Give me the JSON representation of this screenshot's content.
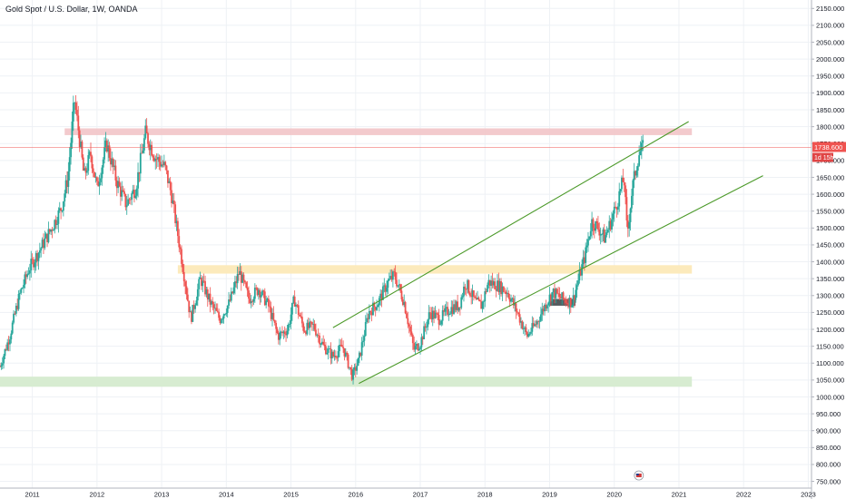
{
  "header": {
    "title": "Gold Spot / U.S. Dollar, 1W, OANDA"
  },
  "price_badge": {
    "price": "1738.600",
    "countdown": "1d 15h"
  },
  "colors": {
    "up": "#26a69a",
    "down": "#ef5350",
    "trendline": "#4c9a2a",
    "resistance_zone": "#f2c4c8",
    "mid_zone": "#fce9b8",
    "support_zone": "#d5ebcf",
    "marker_box": "#555b5e",
    "price_line": "#ef5350",
    "grid": "#eef1f5"
  },
  "chart_data": {
    "type": "candlestick",
    "title": "Gold Spot / U.S. Dollar, 1W, OANDA",
    "x_axis": {
      "ticks": [
        "2011",
        "2012",
        "2013",
        "2014",
        "2015",
        "2016",
        "2017",
        "2018",
        "2019",
        "2020",
        "2021",
        "2022",
        "2023"
      ],
      "range": [
        2010.5,
        2023.05
      ]
    },
    "y_axis": {
      "ticks": [
        "750.000",
        "800.000",
        "850.000",
        "900.000",
        "950.000",
        "1000.000",
        "1050.000",
        "1100.000",
        "1150.000",
        "1200.000",
        "1250.000",
        "1300.000",
        "1350.000",
        "1400.000",
        "1450.000",
        "1500.000",
        "1550.000",
        "1600.000",
        "1650.000",
        "1700.000",
        "1750.000",
        "1800.000",
        "1850.000",
        "1900.000",
        "1950.000",
        "2000.000",
        "2050.000",
        "2100.000",
        "2150.000"
      ],
      "range": [
        730,
        2175
      ],
      "position": "right"
    },
    "grid": true,
    "last_price": 1738.6,
    "price_path": [
      [
        2010.5,
        1090
      ],
      [
        2010.65,
        1180
      ],
      [
        2010.8,
        1300
      ],
      [
        2010.95,
        1380
      ],
      [
        2011.1,
        1430
      ],
      [
        2011.3,
        1500
      ],
      [
        2011.45,
        1560
      ],
      [
        2011.55,
        1650
      ],
      [
        2011.65,
        1880
      ],
      [
        2011.72,
        1780
      ],
      [
        2011.8,
        1650
      ],
      [
        2011.9,
        1720
      ],
      [
        2012.0,
        1620
      ],
      [
        2012.15,
        1750
      ],
      [
        2012.3,
        1640
      ],
      [
        2012.45,
        1570
      ],
      [
        2012.6,
        1620
      ],
      [
        2012.75,
        1780
      ],
      [
        2012.9,
        1710
      ],
      [
        2013.05,
        1680
      ],
      [
        2013.15,
        1600
      ],
      [
        2013.3,
        1420
      ],
      [
        2013.45,
        1230
      ],
      [
        2013.6,
        1350
      ],
      [
        2013.75,
        1280
      ],
      [
        2013.9,
        1230
      ],
      [
        2014.05,
        1280
      ],
      [
        2014.2,
        1370
      ],
      [
        2014.35,
        1290
      ],
      [
        2014.5,
        1320
      ],
      [
        2014.65,
        1270
      ],
      [
        2014.8,
        1180
      ],
      [
        2014.95,
        1200
      ],
      [
        2015.05,
        1290
      ],
      [
        2015.2,
        1200
      ],
      [
        2015.35,
        1210
      ],
      [
        2015.5,
        1150
      ],
      [
        2015.65,
        1120
      ],
      [
        2015.8,
        1150
      ],
      [
        2015.95,
        1060
      ],
      [
        2016.05,
        1110
      ],
      [
        2016.2,
        1250
      ],
      [
        2016.35,
        1280
      ],
      [
        2016.5,
        1340
      ],
      [
        2016.6,
        1360
      ],
      [
        2016.75,
        1280
      ],
      [
        2016.9,
        1140
      ],
      [
        2017.0,
        1160
      ],
      [
        2017.15,
        1250
      ],
      [
        2017.3,
        1230
      ],
      [
        2017.45,
        1260
      ],
      [
        2017.6,
        1270
      ],
      [
        2017.7,
        1340
      ],
      [
        2017.85,
        1280
      ],
      [
        2017.95,
        1270
      ],
      [
        2018.05,
        1340
      ],
      [
        2018.2,
        1330
      ],
      [
        2018.35,
        1310
      ],
      [
        2018.5,
        1250
      ],
      [
        2018.65,
        1180
      ],
      [
        2018.8,
        1220
      ],
      [
        2018.95,
        1280
      ],
      [
        2019.05,
        1310
      ],
      [
        2019.2,
        1290
      ],
      [
        2019.35,
        1280
      ],
      [
        2019.45,
        1350
      ],
      [
        2019.55,
        1420
      ],
      [
        2019.65,
        1520
      ],
      [
        2019.75,
        1500
      ],
      [
        2019.85,
        1470
      ],
      [
        2019.95,
        1520
      ],
      [
        2020.05,
        1580
      ],
      [
        2020.15,
        1650
      ],
      [
        2020.2,
        1480
      ],
      [
        2020.28,
        1620
      ],
      [
        2020.38,
        1720
      ],
      [
        2020.45,
        1738
      ]
    ],
    "annotations": {
      "resistance_zone": {
        "y": [
          1775,
          1795
        ],
        "x": [
          2011.5,
          2021.2
        ]
      },
      "mid_zone": {
        "y": [
          1365,
          1390
        ],
        "x": [
          2013.25,
          2021.2
        ]
      },
      "support_zone": {
        "y": [
          1030,
          1060
        ],
        "x": [
          2010.5,
          2021.2
        ]
      },
      "marker_box": {
        "y": [
          1270,
          1290
        ],
        "x": [
          2019.0,
          2019.4
        ]
      },
      "channel_upper": {
        "from": [
          2015.65,
          1205
        ],
        "to": [
          2021.15,
          1815
        ]
      },
      "channel_lower": {
        "from": [
          2016.05,
          1040
        ],
        "to": [
          2022.3,
          1655
        ]
      }
    }
  }
}
